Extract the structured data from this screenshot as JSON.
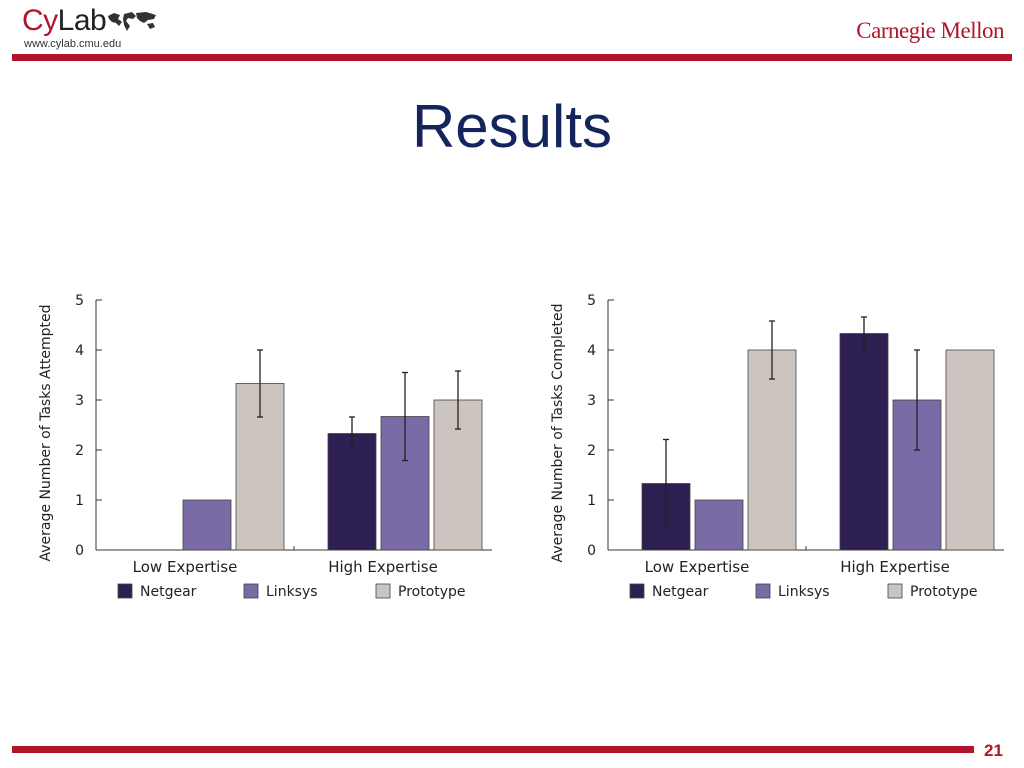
{
  "header": {
    "logo_left": "CyLab",
    "logo_left_url": "www.cylab.cmu.edu",
    "logo_right": "Carnegie Mellon"
  },
  "slide": {
    "title": "Results",
    "page_number": "21"
  },
  "colors": {
    "brand_red": "#b0152b",
    "title_navy": "#14245c",
    "Netgear": "#2e1f52",
    "Linksys": "#7a6aa6",
    "Prototype": "#ccc4bf"
  },
  "chart_data": [
    {
      "type": "bar",
      "title": "",
      "xlabel": "",
      "ylabel": "Average Number of Tasks Attempted",
      "categories": [
        "Low Expertise",
        "High Expertise"
      ],
      "ylim": [
        0,
        5
      ],
      "yticks": [
        0,
        1,
        2,
        3,
        4,
        5
      ],
      "grid": false,
      "legend": "bottom",
      "series": [
        {
          "name": "Netgear",
          "values": [
            0,
            2.33
          ],
          "error": [
            null,
            0.33
          ]
        },
        {
          "name": "Linksys",
          "values": [
            1,
            2.67
          ],
          "error": [
            null,
            0.88
          ]
        },
        {
          "name": "Prototype",
          "values": [
            3.33,
            3
          ],
          "error": [
            0.67,
            0.58
          ]
        }
      ]
    },
    {
      "type": "bar",
      "title": "",
      "xlabel": "",
      "ylabel": "Average Number of Tasks Completed",
      "categories": [
        "Low Expertise",
        "High Expertise"
      ],
      "ylim": [
        0,
        5
      ],
      "yticks": [
        0,
        1,
        2,
        3,
        4,
        5
      ],
      "grid": false,
      "legend": "bottom",
      "series": [
        {
          "name": "Netgear",
          "values": [
            1.33,
            4.33
          ],
          "error": [
            0.88,
            0.33
          ]
        },
        {
          "name": "Linksys",
          "values": [
            1,
            3
          ],
          "error": [
            null,
            1
          ]
        },
        {
          "name": "Prototype",
          "values": [
            4,
            4
          ],
          "error": [
            0.58,
            null
          ]
        }
      ]
    }
  ]
}
